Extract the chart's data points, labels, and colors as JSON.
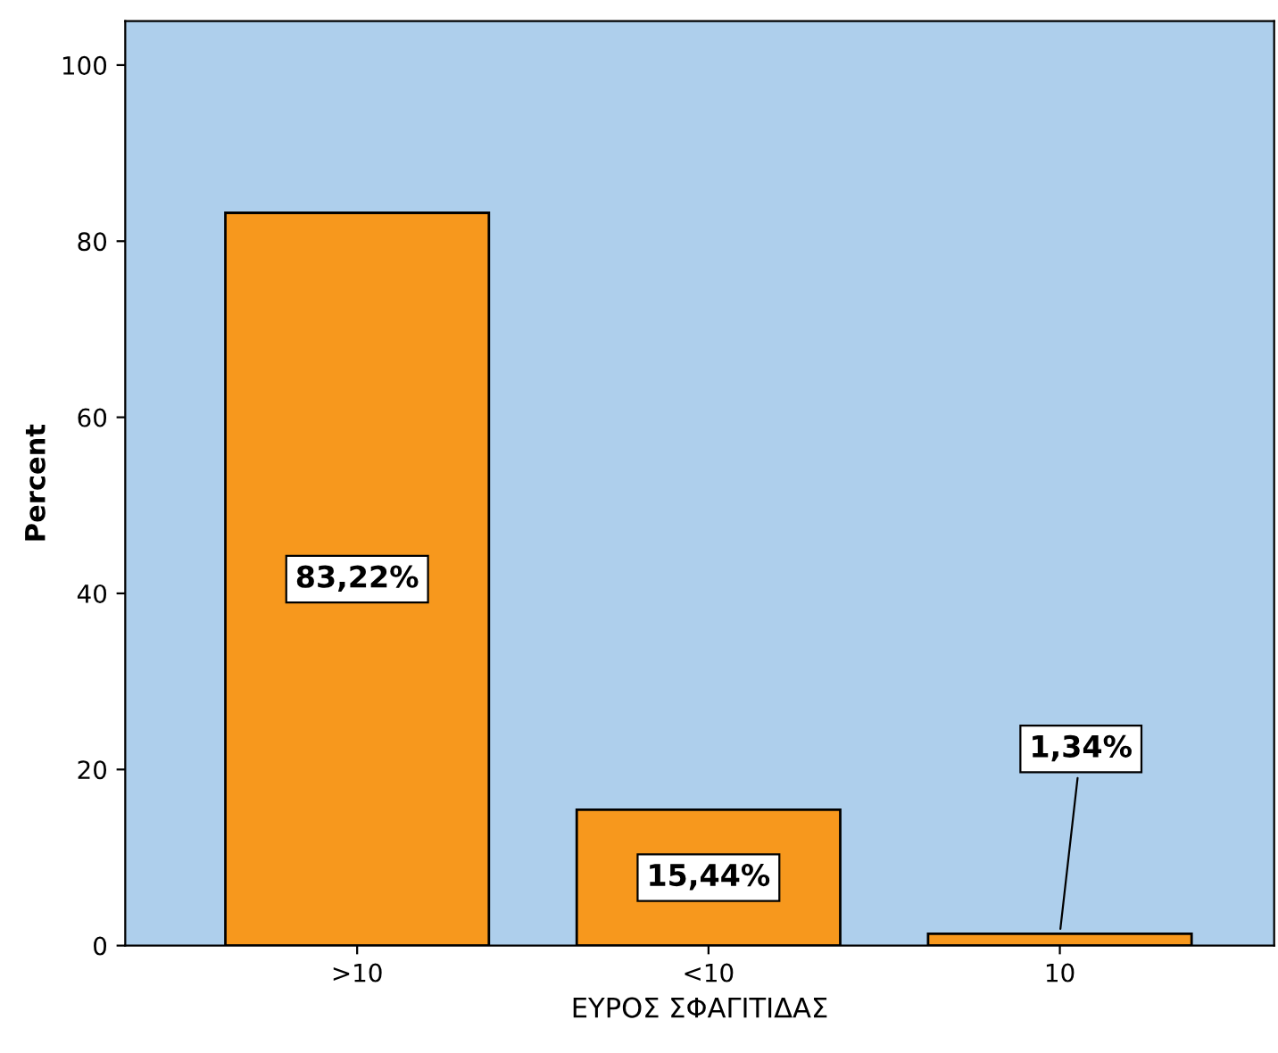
{
  "chart_data": {
    "type": "bar",
    "xlabel": "ΕΥΡΟΣ ΣΦΑΓΙΤΙΔΑΣ",
    "ylabel": "Percent",
    "categories": [
      ">10",
      "<10",
      "10"
    ],
    "values": [
      83.22,
      15.44,
      1.34
    ],
    "value_labels": [
      "83,22%",
      "15,44%",
      "1,34%"
    ],
    "color": "#f7981d",
    "ylim": [
      0,
      105
    ],
    "yticks": [
      0,
      20,
      40,
      60,
      80,
      100
    ],
    "grid": false
  }
}
